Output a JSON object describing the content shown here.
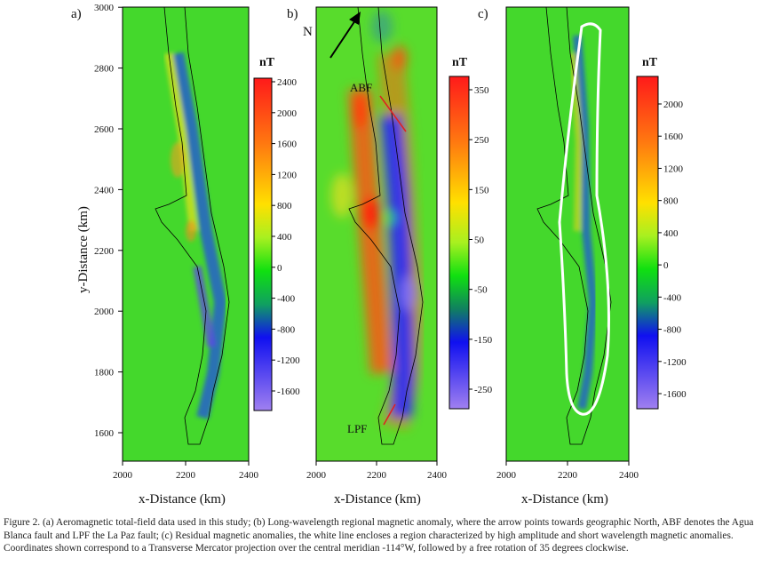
{
  "figure": {
    "caption": "Figure 2. (a) Aeromagnetic total-field data used in this study; (b) Long-wavelength regional magnetic anomaly, where the arrow points towards geographic North, ABF denotes the Agua Blanca fault and LPF the La Paz fault; (c) Residual magnetic anomalies, the white line encloses a region characterized by high amplitude and short wavelength magnetic anomalies. Coordinates shown correspond to a Transverse Mercator projection over the central meridian -114°W, followed by a free rotation of 35 degrees clockwise."
  },
  "axes": {
    "ylabel": "y-Distance (km)",
    "xlabel": "x-Distance (km)",
    "yticks": [
      "1600",
      "1800",
      "2000",
      "2200",
      "2400",
      "2600",
      "2800",
      "3000"
    ],
    "xticks": [
      "2000",
      "2200",
      "2400"
    ]
  },
  "panels": [
    {
      "label": "a)",
      "unit": "nT",
      "colorbar_ticks": [
        "2400",
        "2000",
        "1600",
        "1200",
        "800",
        "400",
        "0",
        "-400",
        "-800",
        "-1200",
        "-1600"
      ]
    },
    {
      "label": "b)",
      "unit": "nT",
      "colorbar_ticks": [
        "350",
        "250",
        "150",
        "50",
        "-50",
        "-150",
        "-250"
      ],
      "north_label": "N",
      "fault_1": "ABF",
      "fault_2": "LPF"
    },
    {
      "label": "c)",
      "unit": "nT",
      "colorbar_ticks": [
        "2000",
        "1600",
        "1200",
        "800",
        "400",
        "0",
        "-400",
        "-800",
        "-1200",
        "-1600"
      ]
    }
  ],
  "colors": {
    "fault_line": "#e02020",
    "enclosure_line": "#ffffff",
    "background_field": "#3fd62c"
  }
}
